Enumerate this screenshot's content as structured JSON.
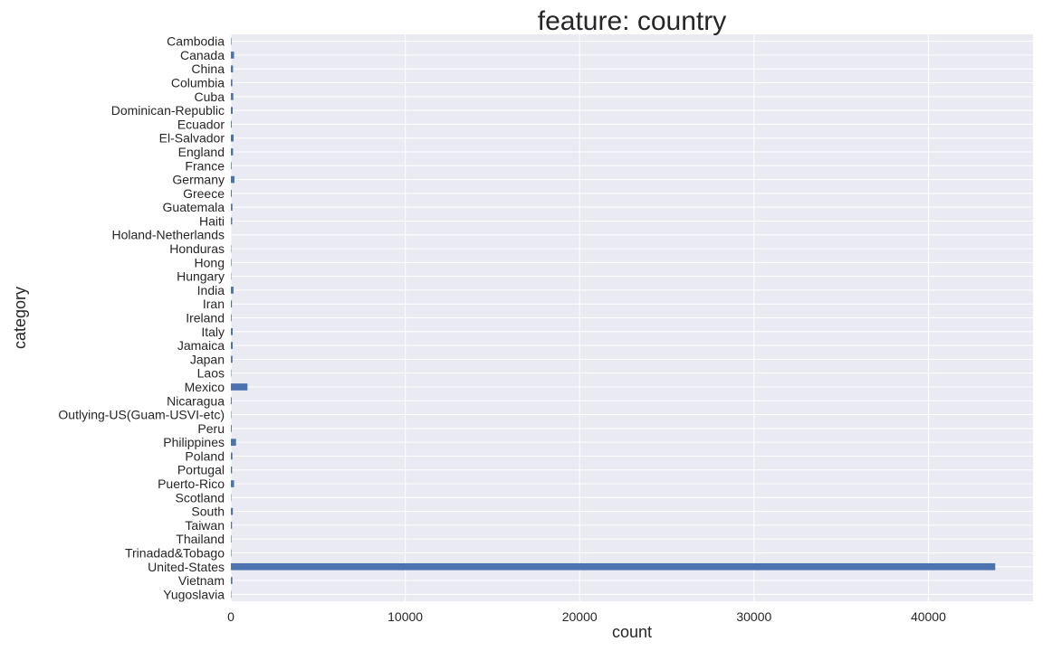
{
  "chart_data": {
    "type": "bar",
    "orientation": "horizontal",
    "title": "feature: country",
    "xlabel": "count",
    "ylabel": "category",
    "xlim": [
      0,
      46000
    ],
    "xticks": [
      0,
      10000,
      20000,
      30000,
      40000
    ],
    "grid": true,
    "bar_color": "#4c72b0",
    "background_color": "#eaeaf2",
    "grid_color": "#ffffff",
    "categories": [
      "Cambodia",
      "Canada",
      "China",
      "Columbia",
      "Cuba",
      "Dominican-Republic",
      "Ecuador",
      "El-Salvador",
      "England",
      "France",
      "Germany",
      "Greece",
      "Guatemala",
      "Haiti",
      "Holand-Netherlands",
      "Honduras",
      "Hong",
      "Hungary",
      "India",
      "Iran",
      "Ireland",
      "Italy",
      "Jamaica",
      "Japan",
      "Laos",
      "Mexico",
      "Nicaragua",
      "Outlying-US(Guam-USVI-etc)",
      "Peru",
      "Philippines",
      "Poland",
      "Portugal",
      "Puerto-Rico",
      "Scotland",
      "South",
      "Taiwan",
      "Thailand",
      "Trinadad&Tobago",
      "United-States",
      "Vietnam",
      "Yugoslavia"
    ],
    "values": [
      28,
      182,
      122,
      85,
      138,
      103,
      45,
      155,
      127,
      38,
      206,
      49,
      88,
      75,
      1,
      20,
      30,
      19,
      151,
      59,
      37,
      105,
      106,
      92,
      23,
      951,
      49,
      23,
      46,
      295,
      87,
      67,
      184,
      21,
      115,
      65,
      30,
      27,
      43832,
      86,
      23
    ]
  }
}
